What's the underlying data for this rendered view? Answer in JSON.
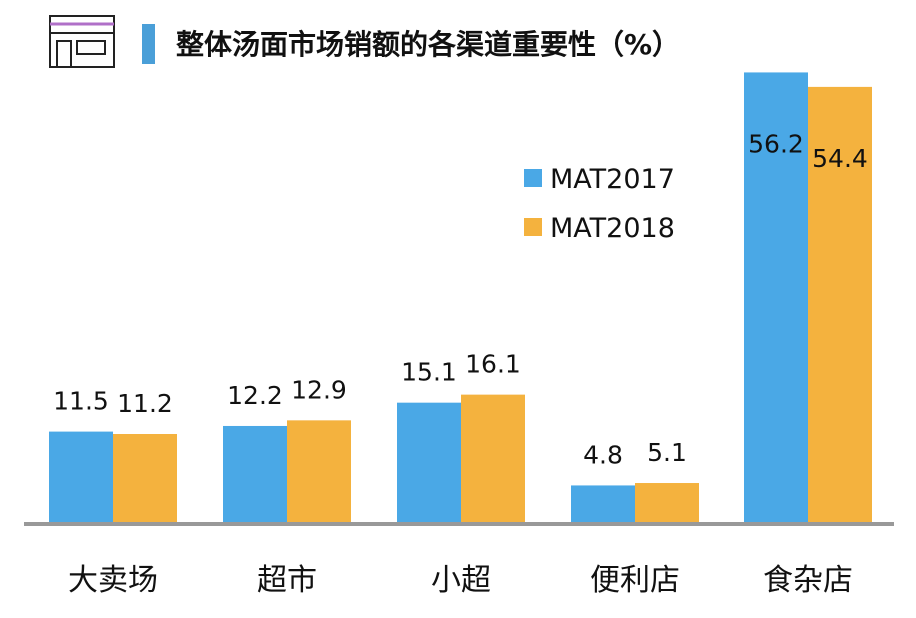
{
  "header": {
    "title": "整体汤面市场销额的各渠道重要性（%）",
    "icon": "store-icon",
    "accent_color": "#4a9fd8"
  },
  "chart_data": {
    "type": "bar",
    "title": "整体汤面市场销额的各渠道重要性（%）",
    "xlabel": "",
    "ylabel": "",
    "categories": [
      "大卖场",
      "超市",
      "小超",
      "便利店",
      "食杂店"
    ],
    "series": [
      {
        "name": "MAT2017",
        "color": "#4aa8e6",
        "values": [
          11.5,
          12.2,
          15.1,
          4.8,
          56.2
        ]
      },
      {
        "name": "MAT2018",
        "color": "#f4b23e",
        "values": [
          11.2,
          12.9,
          16.1,
          5.1,
          54.4
        ]
      }
    ],
    "ylim": [
      0,
      57
    ],
    "grid": false,
    "legend_position": "top-center",
    "data_labels": true,
    "axis_color": "#999999"
  }
}
